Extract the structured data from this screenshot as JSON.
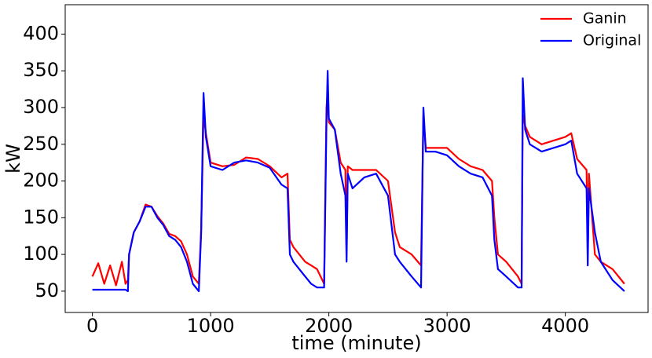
{
  "chart_data": {
    "type": "line",
    "xlabel": "time (minute)",
    "ylabel": "kW",
    "x": [
      0,
      50,
      100,
      150,
      200,
      250,
      280,
      300,
      310,
      350,
      400,
      450,
      500,
      550,
      600,
      650,
      700,
      750,
      800,
      850,
      900,
      920,
      940,
      960,
      1000,
      1100,
      1200,
      1300,
      1400,
      1500,
      1600,
      1650,
      1670,
      1700,
      1750,
      1800,
      1850,
      1900,
      1960,
      1980,
      1990,
      2000,
      2050,
      2100,
      2140,
      2150,
      2160,
      2200,
      2300,
      2400,
      2500,
      2560,
      2600,
      2700,
      2780,
      2800,
      2820,
      2900,
      3000,
      3100,
      3200,
      3300,
      3380,
      3400,
      3430,
      3500,
      3600,
      3630,
      3640,
      3660,
      3700,
      3800,
      3900,
      4000,
      4050,
      4100,
      4180,
      4190,
      4200,
      4250,
      4300,
      4400,
      4500
    ],
    "series": [
      {
        "name": "Ganin",
        "color": "#ff0000",
        "values": [
          70,
          88,
          60,
          85,
          58,
          90,
          60,
          65,
          100,
          130,
          145,
          168,
          165,
          152,
          142,
          128,
          125,
          118,
          100,
          70,
          60,
          135,
          290,
          265,
          225,
          220,
          222,
          232,
          230,
          220,
          205,
          210,
          120,
          110,
          100,
          90,
          85,
          80,
          60,
          300,
          320,
          280,
          270,
          225,
          215,
          100,
          220,
          215,
          215,
          215,
          200,
          130,
          110,
          100,
          85,
          290,
          245,
          245,
          245,
          230,
          220,
          215,
          200,
          150,
          100,
          90,
          70,
          60,
          290,
          275,
          260,
          250,
          255,
          260,
          265,
          230,
          215,
          100,
          210,
          100,
          90,
          80,
          60
        ]
      },
      {
        "name": "Original",
        "color": "#0000ff",
        "values": [
          52,
          52,
          52,
          52,
          52,
          52,
          52,
          50,
          100,
          130,
          145,
          165,
          165,
          150,
          140,
          125,
          120,
          110,
          90,
          60,
          50,
          130,
          320,
          260,
          220,
          215,
          225,
          228,
          225,
          218,
          195,
          190,
          100,
          90,
          80,
          70,
          60,
          55,
          55,
          280,
          350,
          285,
          270,
          210,
          180,
          90,
          210,
          190,
          205,
          210,
          180,
          100,
          90,
          70,
          55,
          300,
          240,
          240,
          235,
          220,
          210,
          205,
          180,
          120,
          80,
          70,
          55,
          55,
          340,
          270,
          250,
          240,
          245,
          250,
          255,
          210,
          190,
          85,
          190,
          130,
          90,
          65,
          50
        ]
      }
    ],
    "xlim": [
      -230,
      4700
    ],
    "ylim": [
      21,
      440
    ],
    "xticks": [
      0,
      1000,
      2000,
      3000,
      4000
    ],
    "yticks": [
      50,
      100,
      150,
      200,
      250,
      300,
      350,
      400
    ],
    "legend": "upper right"
  }
}
